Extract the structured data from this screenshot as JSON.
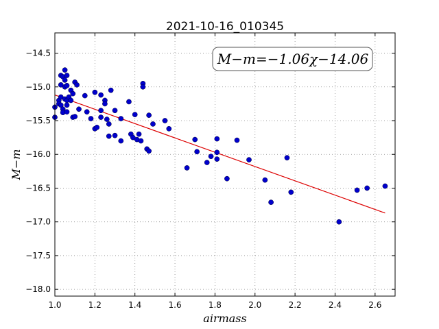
{
  "chart_data": {
    "type": "scatter",
    "title": "2021-10-16_010345",
    "xlabel": "airmass",
    "ylabel": "M−m",
    "xlim": [
      1.0,
      2.7
    ],
    "ylim": [
      -18.1,
      -14.2
    ],
    "xticks": [
      1.0,
      1.2,
      1.4,
      1.6,
      1.8,
      2.0,
      2.2,
      2.4,
      2.6
    ],
    "xtick_labels": [
      "1.0",
      "1.2",
      "1.4",
      "1.6",
      "1.8",
      "2.0",
      "2.2",
      "2.4",
      "2.6"
    ],
    "yticks": [
      -14.5,
      -15.0,
      -15.5,
      -16.0,
      -16.5,
      -17.0,
      -17.5,
      -18.0
    ],
    "ytick_labels": [
      "−14.5",
      "−15.0",
      "−15.5",
      "−16.0",
      "−16.5",
      "−17.0",
      "−17.5",
      "−18.0"
    ],
    "grid": true,
    "annotation": "M−m=−1.06χ−14.06",
    "point_color": "#0000cc",
    "fit_color": "#dd0000",
    "fit": {
      "slope": -1.06,
      "intercept": -14.06,
      "x_range": [
        1.0,
        2.65
      ]
    },
    "points": [
      [
        1.0,
        -15.3
      ],
      [
        1.0,
        -15.45
      ],
      [
        1.02,
        -15.2
      ],
      [
        1.02,
        -15.25
      ],
      [
        1.03,
        -14.83
      ],
      [
        1.03,
        -14.97
      ],
      [
        1.03,
        -15.15
      ],
      [
        1.03,
        -15.27
      ],
      [
        1.04,
        -14.85
      ],
      [
        1.04,
        -15.33
      ],
      [
        1.04,
        -15.38
      ],
      [
        1.05,
        -14.75
      ],
      [
        1.05,
        -14.9
      ],
      [
        1.05,
        -15.0
      ],
      [
        1.05,
        -15.18
      ],
      [
        1.06,
        -14.83
      ],
      [
        1.06,
        -14.98
      ],
      [
        1.06,
        -15.2
      ],
      [
        1.06,
        -15.27
      ],
      [
        1.06,
        -15.37
      ],
      [
        1.07,
        -15.15
      ],
      [
        1.08,
        -15.05
      ],
      [
        1.08,
        -15.2
      ],
      [
        1.09,
        -15.1
      ],
      [
        1.09,
        -15.45
      ],
      [
        1.1,
        -14.93
      ],
      [
        1.1,
        -15.44
      ],
      [
        1.11,
        -14.97
      ],
      [
        1.12,
        -15.33
      ],
      [
        1.15,
        -15.13
      ],
      [
        1.16,
        -15.37
      ],
      [
        1.18,
        -15.47
      ],
      [
        1.2,
        -15.08
      ],
      [
        1.2,
        -15.62
      ],
      [
        1.21,
        -15.6
      ],
      [
        1.23,
        -15.12
      ],
      [
        1.23,
        -15.35
      ],
      [
        1.23,
        -15.45
      ],
      [
        1.25,
        -15.2
      ],
      [
        1.25,
        -15.25
      ],
      [
        1.26,
        -15.48
      ],
      [
        1.27,
        -15.55
      ],
      [
        1.27,
        -15.73
      ],
      [
        1.28,
        -15.05
      ],
      [
        1.3,
        -15.35
      ],
      [
        1.3,
        -15.72
      ],
      [
        1.33,
        -15.47
      ],
      [
        1.33,
        -15.8
      ],
      [
        1.37,
        -15.22
      ],
      [
        1.38,
        -15.7
      ],
      [
        1.39,
        -15.75
      ],
      [
        1.4,
        -15.41
      ],
      [
        1.41,
        -15.78
      ],
      [
        1.42,
        -15.7
      ],
      [
        1.43,
        -15.8
      ],
      [
        1.44,
        -14.95
      ],
      [
        1.44,
        -15.0
      ],
      [
        1.46,
        -15.92
      ],
      [
        1.47,
        -15.42
      ],
      [
        1.47,
        -15.95
      ],
      [
        1.49,
        -15.55
      ],
      [
        1.55,
        -15.5
      ],
      [
        1.57,
        -15.62
      ],
      [
        1.66,
        -16.2
      ],
      [
        1.7,
        -15.78
      ],
      [
        1.71,
        -15.96
      ],
      [
        1.76,
        -16.12
      ],
      [
        1.78,
        -16.03
      ],
      [
        1.81,
        -15.77
      ],
      [
        1.81,
        -15.97
      ],
      [
        1.81,
        -16.07
      ],
      [
        1.86,
        -16.36
      ],
      [
        1.91,
        -15.79
      ],
      [
        1.97,
        -16.08
      ],
      [
        2.05,
        -16.38
      ],
      [
        2.08,
        -16.71
      ],
      [
        2.16,
        -16.05
      ],
      [
        2.18,
        -16.56
      ],
      [
        2.42,
        -17.0
      ],
      [
        2.51,
        -16.53
      ],
      [
        2.56,
        -16.5
      ],
      [
        2.65,
        -16.47
      ]
    ]
  }
}
